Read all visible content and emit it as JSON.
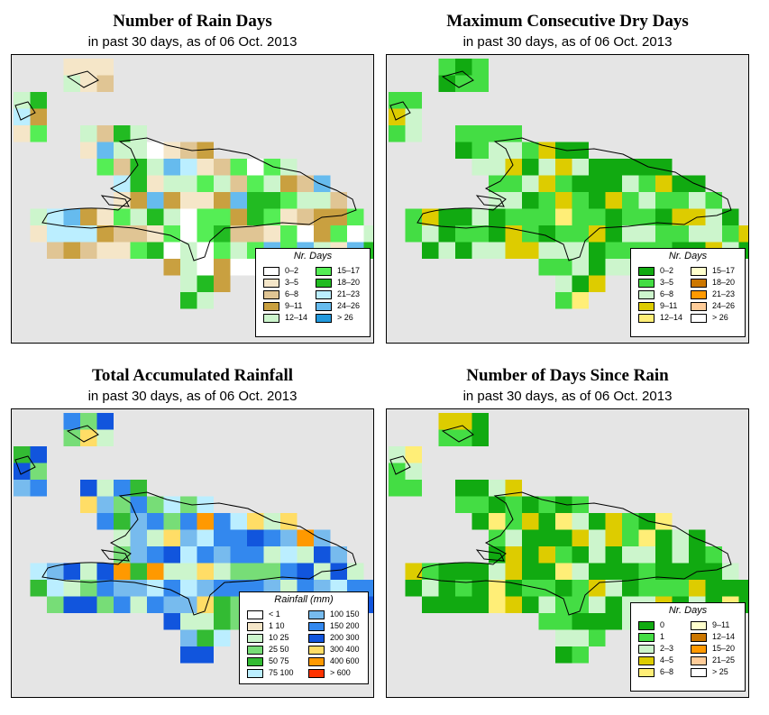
{
  "panels": [
    {
      "id": "rain-days",
      "title": "Number of Rain Days",
      "subtitle": "in past 30 days, as of  06 Oct. 2013",
      "legend": {
        "title": "Nr. Days",
        "items": [
          {
            "label": "0–2",
            "color": "#ffffff"
          },
          {
            "label": "3–5",
            "color": "#f5e6c8"
          },
          {
            "label": "6–8",
            "color": "#e0c594"
          },
          {
            "label": "9–11",
            "color": "#c9a040"
          },
          {
            "label": "12–14",
            "color": "#ccf5cc"
          },
          {
            "label": "15–17",
            "color": "#55ee55"
          },
          {
            "label": "18–20",
            "color": "#22bb22"
          },
          {
            "label": "21–23",
            "color": "#bbeeff"
          },
          {
            "label": "24–26",
            "color": "#66bbee"
          },
          {
            "label": "> 26",
            "color": "#2299dd"
          }
        ]
      }
    },
    {
      "id": "dry-days",
      "title": "Maximum Consecutive Dry Days",
      "subtitle": "in past 30 days, as of  06 Oct. 2013",
      "legend": {
        "title": "Nr. Days",
        "items": [
          {
            "label": "0–2",
            "color": "#11aa11"
          },
          {
            "label": "3–5",
            "color": "#44dd44"
          },
          {
            "label": "6–8",
            "color": "#ccf5cc"
          },
          {
            "label": "9–11",
            "color": "#ddcc00"
          },
          {
            "label": "12–14",
            "color": "#ffee77"
          },
          {
            "label": "15–17",
            "color": "#ffffcc"
          },
          {
            "label": "18–20",
            "color": "#cc7700"
          },
          {
            "label": "21–23",
            "color": "#ff9900"
          },
          {
            "label": "24–26",
            "color": "#ffcc99"
          },
          {
            "label": "> 26",
            "color": "#ffffff"
          }
        ]
      }
    },
    {
      "id": "rainfall",
      "title": "Total Accumulated Rainfall",
      "subtitle": "in past 30 days, as of  06 Oct. 2013",
      "legend": {
        "title": "Rainfall (mm)",
        "items": [
          {
            "label": "< 1",
            "color": "#ffffff"
          },
          {
            "label": "1    10",
            "color": "#f5e6c8"
          },
          {
            "label": "10    25",
            "color": "#ccf5cc"
          },
          {
            "label": "25    50",
            "color": "#77dd77"
          },
          {
            "label": "50    75",
            "color": "#33bb33"
          },
          {
            "label": "75   100",
            "color": "#bbeeff"
          },
          {
            "label": "100   150",
            "color": "#77bbee"
          },
          {
            "label": "150   200",
            "color": "#3388ee"
          },
          {
            "label": "200   300",
            "color": "#1155dd"
          },
          {
            "label": "300   400",
            "color": "#ffdd66"
          },
          {
            "label": "400   600",
            "color": "#ff9900"
          },
          {
            "label": "> 600",
            "color": "#ff3300"
          }
        ]
      }
    },
    {
      "id": "since-rain",
      "title": "Number of Days Since Rain",
      "subtitle": "in past 30 days, as of  06 Oct. 2013",
      "legend": {
        "title": "Nr. Days",
        "items": [
          {
            "label": "0",
            "color": "#11aa11"
          },
          {
            "label": "1",
            "color": "#44dd44"
          },
          {
            "label": "2–3",
            "color": "#ccf5cc"
          },
          {
            "label": "4–5",
            "color": "#ddcc00"
          },
          {
            "label": "6–8",
            "color": "#ffee77"
          },
          {
            "label": "9–11",
            "color": "#ffffcc"
          },
          {
            "label": "12–14",
            "color": "#cc7700"
          },
          {
            "label": "15–20",
            "color": "#ff9900"
          },
          {
            "label": "21–25",
            "color": "#ffcc99"
          },
          {
            "label": "> 25",
            "color": "#ffffff"
          }
        ]
      }
    }
  ]
}
